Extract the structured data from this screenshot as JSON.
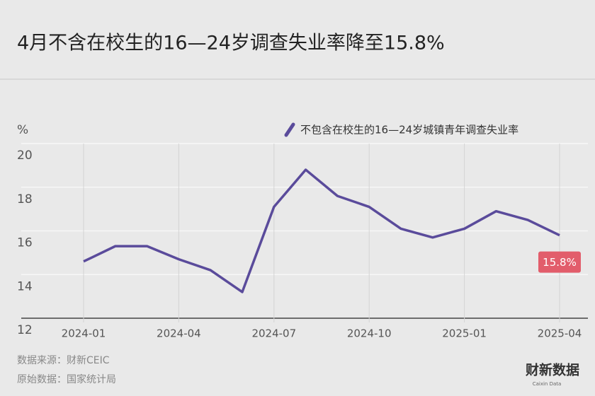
{
  "chart_data": {
    "type": "line",
    "title": "4月不含在校生的16—24岁调查失业率降至15.8%",
    "ylabel": "%",
    "categories": [
      "2024-01",
      null,
      null,
      "2024-04",
      null,
      null,
      "2024-07",
      null,
      null,
      "2024-10",
      null,
      null,
      "2025-01",
      null,
      null,
      "2025-04"
    ],
    "series": [
      {
        "name": "不包含在校生的16—24岁城镇青年调查失业率",
        "color": "#5a4b9b",
        "values": [
          14.6,
          15.3,
          15.3,
          14.7,
          14.2,
          13.2,
          17.1,
          18.8,
          17.6,
          17.1,
          16.1,
          15.7,
          16.1,
          16.9,
          16.5,
          15.8
        ],
        "value_labels": [
          null,
          null,
          null,
          null,
          null,
          null,
          null,
          null,
          null,
          null,
          null,
          null,
          null,
          null,
          null,
          "15.8%"
        ]
      }
    ],
    "label_color": "#e25d6b",
    "ylim": [
      12,
      20
    ],
    "yticks": [
      12,
      14,
      16,
      18,
      20
    ],
    "grid": true,
    "sources": [
      "数据来源：财新CEIC",
      "原始数据：国家统计局"
    ],
    "logo": {
      "name": "财新数据",
      "sub": "Caixin Data"
    }
  }
}
